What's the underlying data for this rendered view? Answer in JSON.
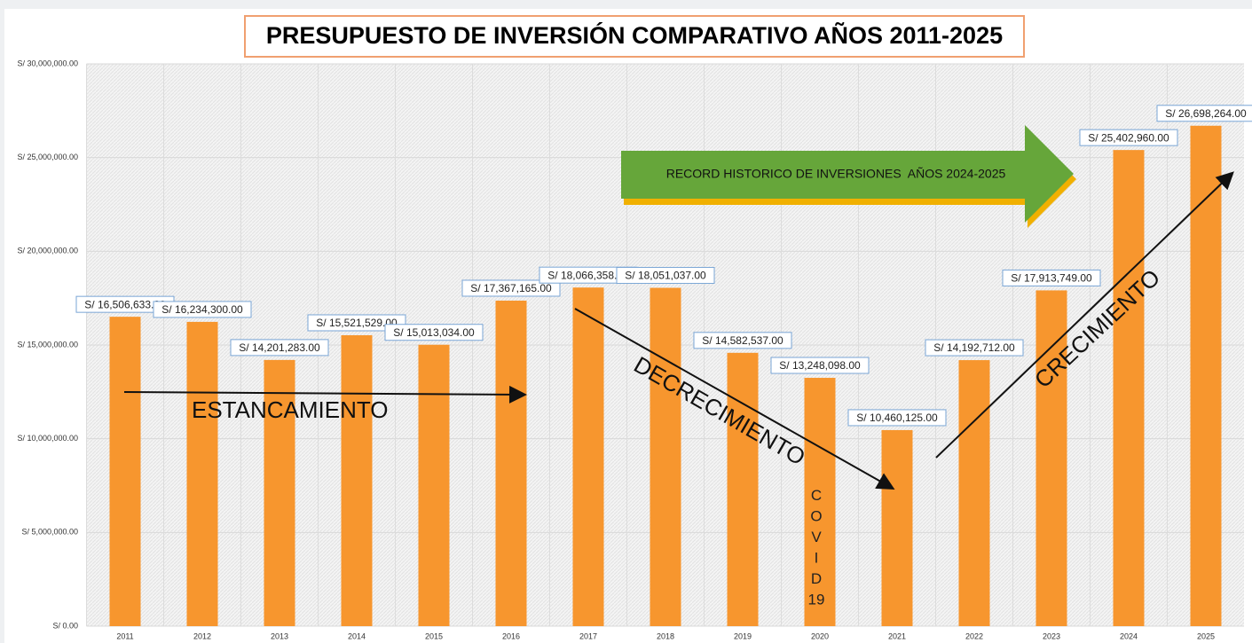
{
  "chart_data": {
    "type": "bar",
    "title": "PRESUPUESTO DE INVERSIÓN COMPARATIVO AÑOS 2011-2025",
    "categories": [
      "2011",
      "2012",
      "2013",
      "2014",
      "2015",
      "2016",
      "2017",
      "2018",
      "2019",
      "2020",
      "2021",
      "2022",
      "2023",
      "2024",
      "2025"
    ],
    "values": [
      16506633,
      16234300,
      14201283,
      15521529,
      15013034,
      17367165,
      18066358,
      18051037,
      14582537,
      13248098,
      10460125,
      14192712,
      17913749,
      25402960,
      26698264
    ],
    "value_labels": [
      "S/ 16,506,633.00",
      "S/ 16,234,300.00",
      "S/ 14,201,283.00",
      "S/ 15,521,529.00",
      "S/ 15,013,034.00",
      "S/ 17,367,165.00",
      "S/ 18,066,358.00",
      "S/ 18,051,037.00",
      "S/ 14,582,537.00",
      "S/ 13,248,098.00",
      "S/ 10,460,125.00",
      "S/ 14,192,712.00",
      "S/ 17,913,749.00",
      "S/ 25,402,960.00",
      "S/ 26,698,264.00"
    ],
    "color": "#f7962e",
    "ylim": [
      0,
      30000000
    ],
    "yticks": [
      {
        "value": 0,
        "label": "S/ 0.00"
      },
      {
        "value": 5000000,
        "label": "S/ 5,000,000.00"
      },
      {
        "value": 10000000,
        "label": "S/ 10,000,000.00"
      },
      {
        "value": 15000000,
        "label": "S/ 15,000,000.00"
      },
      {
        "value": 20000000,
        "label": "S/ 20,000,000.00"
      },
      {
        "value": 25000000,
        "label": "S/ 25,000,000.00"
      },
      {
        "value": 30000000,
        "label": "S/ 30,000,000.00"
      }
    ],
    "grid": true,
    "annotations": [
      "ESTANCAMIENTO",
      "DECRECIMIENTO",
      "CRECIMIENTO",
      "RECORD HISTORICO DE INVERSIONES  AÑOS 2024-2025",
      "COVID 19"
    ]
  }
}
